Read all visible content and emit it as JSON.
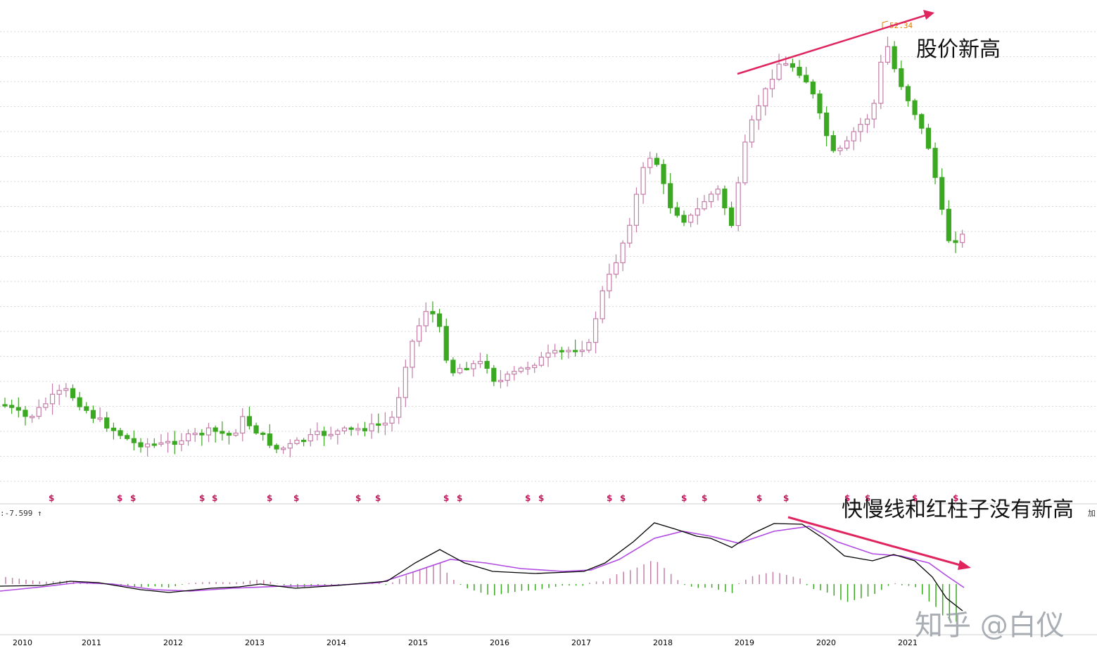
{
  "chart_data": {
    "type": "candlestick-with-macd",
    "annotations": {
      "price": "股价新高",
      "macd": "快慢线和红柱子没有新高",
      "macd_value": ":-7.599 ↑",
      "peak_label": "52.34",
      "right_edge_fragment": "加"
    },
    "watermark": "知乎 @白仪",
    "x_ticks": [
      "2010",
      "2011",
      "2012",
      "2013",
      "2014",
      "2015",
      "2016",
      "2017",
      "2018",
      "2019",
      "2020",
      "2021"
    ],
    "dividend_marker": "$",
    "colors": {
      "up": "#c47ea8",
      "down": "#3aa820",
      "macd_diff": "#000000",
      "macd_dea": "#b04ae0",
      "arrow": "#e0245e",
      "grid": "#d9d9d9"
    }
  }
}
